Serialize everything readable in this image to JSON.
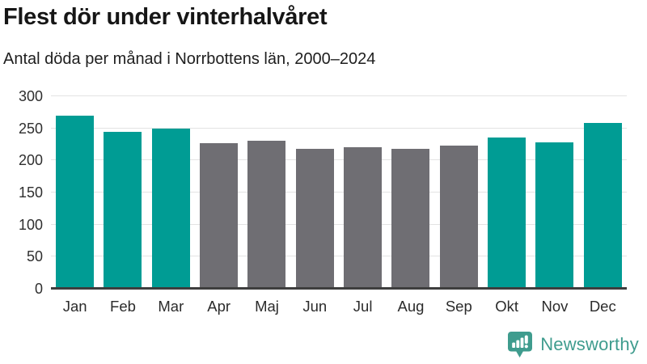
{
  "chart_data": {
    "type": "bar",
    "title": "Flest dör under vinterhalvåret",
    "subtitle": "Antal döda per månad i Norrbottens län, 2000–2024",
    "categories": [
      "Jan",
      "Feb",
      "Mar",
      "Apr",
      "Maj",
      "Jun",
      "Jul",
      "Aug",
      "Sep",
      "Okt",
      "Nov",
      "Dec"
    ],
    "values": [
      270,
      245,
      250,
      227,
      231,
      218,
      220,
      218,
      223,
      236,
      228,
      258
    ],
    "bar_colors": [
      "#009c94",
      "#009c94",
      "#009c94",
      "#6f6e73",
      "#6f6e73",
      "#6f6e73",
      "#6f6e73",
      "#6f6e73",
      "#6f6e73",
      "#009c94",
      "#009c94",
      "#009c94"
    ],
    "xlabel": "",
    "ylabel": "",
    "ylim": [
      0,
      300
    ],
    "yticks": [
      0,
      50,
      100,
      150,
      200,
      250,
      300
    ],
    "grid": "horizontal",
    "legend": "none",
    "colors": {
      "winter_accent": "#009c94",
      "summer_gray": "#6f6e73",
      "gridline": "#e3e3e3",
      "axis_line": "#3e3e3e"
    }
  },
  "footer": {
    "brand": "Newsworthy",
    "brand_color": "#3f9c8e",
    "logo_icon": "bar-chart-speech-bubble-icon"
  }
}
